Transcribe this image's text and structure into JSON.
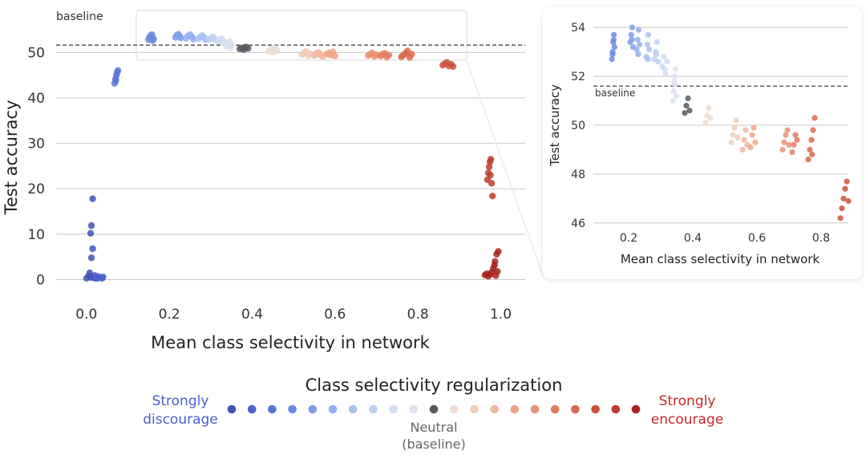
{
  "chart_data": [
    {
      "type": "scatter",
      "id": "main",
      "xlabel": "Mean class selectivity in network",
      "ylabel": "Test accuracy",
      "xlim": [
        -0.05,
        1.03
      ],
      "ylim": [
        -1.5,
        55
      ],
      "xticks": [
        0.0,
        0.2,
        0.4,
        0.6,
        0.8,
        1.0
      ],
      "xtick_labels": [
        "0.0",
        "0.2",
        "0.4",
        "0.6",
        "0.8",
        "1.0"
      ],
      "yticks": [
        0,
        10,
        20,
        30,
        40,
        50
      ],
      "ytick_labels": [
        "0",
        "10",
        "20",
        "30",
        "40",
        "50"
      ],
      "grid": "horizontal",
      "baseline": {
        "value": 51.6,
        "label": "baseline"
      },
      "clusters": [
        {
          "level": 0,
          "points": [
            [
              0.0,
              0.3
            ],
            [
              0.005,
              0.8
            ],
            [
              0.008,
              1.5
            ],
            [
              0.01,
              0.5
            ],
            [
              0.012,
              4.8
            ],
            [
              0.015,
              6.8
            ],
            [
              0.01,
              10.2
            ],
            [
              0.012,
              11.9
            ],
            [
              0.015,
              17.8
            ],
            [
              0.018,
              0.4
            ],
            [
              0.02,
              0.9
            ],
            [
              0.022,
              0.3
            ]
          ]
        },
        {
          "level": 1,
          "points": [
            [
              0.024,
              0.5
            ],
            [
              0.026,
              0.3
            ],
            [
              0.028,
              0.7
            ],
            [
              0.03,
              0.4
            ],
            [
              0.034,
              0.5
            ],
            [
              0.038,
              0.3
            ],
            [
              0.04,
              0.6
            ]
          ]
        },
        {
          "level": 2,
          "points": [
            [
              0.068,
              43.2
            ],
            [
              0.07,
              44.1
            ],
            [
              0.072,
              44.9
            ],
            [
              0.074,
              45.6
            ],
            [
              0.076,
              46.0
            ],
            [
              0.071,
              43.8
            ]
          ]
        },
        {
          "level": 3,
          "points": [
            [
              0.15,
              52.8
            ],
            [
              0.152,
              53.3
            ],
            [
              0.155,
              53.7
            ],
            [
              0.158,
              53.9
            ],
            [
              0.16,
              52.6
            ],
            [
              0.162,
              53.0
            ]
          ]
        },
        {
          "level": 4,
          "points": [
            [
              0.215,
              53.3
            ],
            [
              0.218,
              53.8
            ],
            [
              0.222,
              54.0
            ],
            [
              0.225,
              53.6
            ],
            [
              0.228,
              53.2
            ]
          ]
        },
        {
          "level": 5,
          "points": [
            [
              0.24,
              53.1
            ],
            [
              0.245,
              53.6
            ],
            [
              0.25,
              53.9
            ],
            [
              0.255,
              53.4
            ],
            [
              0.258,
              52.9
            ]
          ]
        },
        {
          "level": 6,
          "points": [
            [
              0.27,
              53.0
            ],
            [
              0.275,
              53.4
            ],
            [
              0.28,
              53.7
            ],
            [
              0.285,
              53.2
            ],
            [
              0.288,
              52.8
            ]
          ]
        },
        {
          "level": 7,
          "points": [
            [
              0.295,
              52.8
            ],
            [
              0.3,
              53.1
            ],
            [
              0.305,
              53.4
            ],
            [
              0.31,
              52.9
            ],
            [
              0.315,
              52.6
            ]
          ]
        },
        {
          "level": 8,
          "points": [
            [
              0.318,
              52.5
            ],
            [
              0.322,
              52.8
            ],
            [
              0.326,
              53.0
            ],
            [
              0.33,
              52.4
            ],
            [
              0.334,
              52.2
            ]
          ]
        },
        {
          "level": 9,
          "points": [
            [
              0.338,
              51.3
            ],
            [
              0.34,
              51.7
            ],
            [
              0.343,
              52.0
            ],
            [
              0.346,
              52.4
            ],
            [
              0.348,
              51.0
            ],
            [
              0.35,
              51.5
            ]
          ]
        },
        {
          "level": 10,
          "points": [
            [
              0.37,
              50.8
            ],
            [
              0.375,
              51.0
            ],
            [
              0.38,
              50.6
            ],
            [
              0.385,
              51.2
            ],
            [
              0.39,
              50.9
            ]
          ]
        },
        {
          "level": 11,
          "points": [
            [
              0.44,
              50.3
            ],
            [
              0.445,
              50.6
            ],
            [
              0.45,
              50.1
            ],
            [
              0.455,
              50.9
            ],
            [
              0.46,
              50.4
            ]
          ]
        },
        {
          "level": 12,
          "points": [
            [
              0.52,
              49.5
            ],
            [
              0.525,
              49.9
            ],
            [
              0.53,
              50.2
            ],
            [
              0.535,
              49.3
            ],
            [
              0.54,
              49.7
            ]
          ]
        },
        {
          "level": 13,
          "points": [
            [
              0.55,
              49.3
            ],
            [
              0.555,
              49.8
            ],
            [
              0.56,
              50.0
            ],
            [
              0.565,
              49.4
            ],
            [
              0.57,
              49.1
            ]
          ]
        },
        {
          "level": 14,
          "points": [
            [
              0.58,
              49.6
            ],
            [
              0.585,
              49.9
            ],
            [
              0.59,
              49.4
            ],
            [
              0.595,
              50.1
            ],
            [
              0.6,
              49.2
            ]
          ]
        },
        {
          "level": 15,
          "points": [
            [
              0.68,
              49.3
            ],
            [
              0.685,
              49.6
            ],
            [
              0.69,
              49.9
            ],
            [
              0.695,
              49.1
            ],
            [
              0.7,
              49.5
            ]
          ]
        },
        {
          "level": 16,
          "points": [
            [
              0.71,
              49.2
            ],
            [
              0.715,
              49.6
            ],
            [
              0.72,
              49.8
            ],
            [
              0.725,
              49.0
            ],
            [
              0.73,
              49.4
            ]
          ]
        },
        {
          "level": 17,
          "points": [
            [
              0.76,
              49.0
            ],
            [
              0.765,
              49.4
            ],
            [
              0.77,
              49.8
            ],
            [
              0.775,
              50.3
            ],
            [
              0.78,
              48.9
            ],
            [
              0.785,
              49.6
            ]
          ]
        },
        {
          "level": 18,
          "points": [
            [
              0.86,
              47.2
            ],
            [
              0.865,
              47.5
            ],
            [
              0.87,
              47.8
            ],
            [
              0.875,
              47.0
            ],
            [
              0.88,
              47.4
            ],
            [
              0.885,
              46.9
            ]
          ]
        },
        {
          "level": 19,
          "points": [
            [
              0.968,
              22.0
            ],
            [
              0.97,
              23.5
            ],
            [
              0.972,
              24.8
            ],
            [
              0.974,
              25.9
            ],
            [
              0.976,
              26.5
            ],
            [
              0.978,
              21.2
            ],
            [
              0.98,
              18.4
            ],
            [
              0.975,
              23.0
            ]
          ]
        },
        {
          "level": 20,
          "points": [
            [
              0.962,
              1.0
            ],
            [
              0.966,
              1.3
            ],
            [
              0.97,
              0.8
            ],
            [
              0.974,
              1.1
            ],
            [
              0.978,
              1.6
            ],
            [
              0.982,
              2.5
            ],
            [
              0.986,
              4.0
            ],
            [
              0.99,
              5.6
            ],
            [
              0.994,
              6.2
            ],
            [
              0.985,
              3.2
            ],
            [
              0.992,
              1.8
            ],
            [
              0.988,
              0.9
            ]
          ]
        }
      ]
    },
    {
      "type": "scatter",
      "id": "inset",
      "xlabel": "Mean class selectivity in network",
      "ylabel": "Test accuracy",
      "xlim": [
        0.1,
        0.9
      ],
      "ylim": [
        45.8,
        54.4
      ],
      "xticks": [
        0.2,
        0.4,
        0.6,
        0.8
      ],
      "xtick_labels": [
        "0.2",
        "0.4",
        "0.6",
        "0.8"
      ],
      "yticks": [
        46,
        48,
        50,
        52,
        54
      ],
      "ytick_labels": [
        "46",
        "48",
        "50",
        "52",
        "54"
      ],
      "grid": "horizontal",
      "baseline": {
        "value": 51.6,
        "label": "baseline"
      },
      "clusters": [
        {
          "level": 3,
          "points": [
            [
              0.148,
              52.7
            ],
            [
              0.15,
              53.0
            ],
            [
              0.152,
              53.4
            ],
            [
              0.154,
              53.7
            ],
            [
              0.156,
              53.2
            ],
            [
              0.15,
              52.9
            ],
            [
              0.153,
              53.5
            ]
          ]
        },
        {
          "level": 4,
          "points": [
            [
              0.205,
              53.4
            ],
            [
              0.208,
              53.7
            ],
            [
              0.211,
              54.0
            ],
            [
              0.214,
              53.2
            ],
            [
              0.21,
              53.5
            ]
          ]
        },
        {
          "level": 5,
          "points": [
            [
              0.225,
              53.1
            ],
            [
              0.228,
              53.5
            ],
            [
              0.231,
              53.9
            ],
            [
              0.234,
              53.3
            ],
            [
              0.23,
              52.9
            ]
          ]
        },
        {
          "level": 6,
          "points": [
            [
              0.255,
              52.8
            ],
            [
              0.258,
              53.3
            ],
            [
              0.261,
              53.7
            ],
            [
              0.264,
              53.1
            ],
            [
              0.26,
              52.7
            ]
          ]
        },
        {
          "level": 7,
          "points": [
            [
              0.28,
              52.7
            ],
            [
              0.284,
              53.0
            ],
            [
              0.288,
              53.4
            ],
            [
              0.292,
              52.6
            ],
            [
              0.286,
              52.9
            ]
          ]
        },
        {
          "level": 8,
          "points": [
            [
              0.305,
              52.4
            ],
            [
              0.31,
              52.8
            ],
            [
              0.315,
              52.1
            ],
            [
              0.32,
              52.6
            ],
            [
              0.312,
              52.3
            ]
          ]
        },
        {
          "level": 9,
          "points": [
            [
              0.338,
              51.0
            ],
            [
              0.34,
              51.4
            ],
            [
              0.342,
              51.7
            ],
            [
              0.344,
              52.0
            ],
            [
              0.346,
              52.3
            ],
            [
              0.348,
              51.2
            ],
            [
              0.343,
              51.8
            ]
          ]
        },
        {
          "level": 10,
          "points": [
            [
              0.375,
              50.5
            ],
            [
              0.38,
              50.8
            ],
            [
              0.385,
              51.1
            ],
            [
              0.39,
              50.6
            ]
          ]
        },
        {
          "level": 11,
          "points": [
            [
              0.44,
              50.1
            ],
            [
              0.445,
              50.4
            ],
            [
              0.45,
              50.7
            ],
            [
              0.455,
              50.3
            ]
          ]
        },
        {
          "level": 12,
          "points": [
            [
              0.52,
              49.3
            ],
            [
              0.525,
              49.6
            ],
            [
              0.53,
              49.9
            ],
            [
              0.535,
              50.2
            ],
            [
              0.54,
              49.5
            ]
          ]
        },
        {
          "level": 13,
          "points": [
            [
              0.555,
              49.0
            ],
            [
              0.56,
              49.4
            ],
            [
              0.565,
              49.8
            ],
            [
              0.57,
              49.2
            ]
          ]
        },
        {
          "level": 14,
          "points": [
            [
              0.58,
              49.1
            ],
            [
              0.585,
              49.6
            ],
            [
              0.59,
              49.9
            ],
            [
              0.595,
              49.3
            ]
          ]
        },
        {
          "level": 15,
          "points": [
            [
              0.68,
              49.0
            ],
            [
              0.685,
              49.3
            ],
            [
              0.69,
              49.6
            ],
            [
              0.695,
              49.8
            ],
            [
              0.7,
              49.2
            ]
          ]
        },
        {
          "level": 16,
          "points": [
            [
              0.71,
              48.9
            ],
            [
              0.715,
              49.2
            ],
            [
              0.72,
              49.6
            ],
            [
              0.725,
              49.4
            ]
          ]
        },
        {
          "level": 17,
          "points": [
            [
              0.76,
              48.6
            ],
            [
              0.765,
              49.0
            ],
            [
              0.77,
              49.4
            ],
            [
              0.775,
              49.8
            ],
            [
              0.78,
              50.3
            ],
            [
              0.772,
              48.8
            ]
          ]
        },
        {
          "level": 18,
          "points": [
            [
              0.86,
              46.2
            ],
            [
              0.865,
              46.6
            ],
            [
              0.87,
              47.0
            ],
            [
              0.875,
              47.4
            ],
            [
              0.88,
              47.7
            ],
            [
              0.885,
              46.9
            ]
          ]
        }
      ]
    }
  ],
  "legend": {
    "title": "Class selectivity regularization",
    "left_label_line1": "Strongly",
    "left_label_line2": "discourage",
    "right_label_line1": "Strongly",
    "right_label_line2": "encourage",
    "center_label_line1": "Neutral",
    "center_label_line2": "(baseline)",
    "levels": 21,
    "neutral_index": 10
  },
  "colors": {
    "palette": [
      "#3f54b6",
      "#4a63c8",
      "#5877d6",
      "#6b8ae0",
      "#7f9de8",
      "#94afee",
      "#a9c1f1",
      "#bdd0f2",
      "#cfdcf1",
      "#dbe2ec",
      "#555a60",
      "#ecdcd1",
      "#f0ccb8",
      "#f1b9a0",
      "#efa68a",
      "#ea9274",
      "#e37d60",
      "#d9684c",
      "#cd523b",
      "#bd3b2b",
      "#a8241f"
    ],
    "neutral": "#555a60",
    "grid": "#c8c8c8",
    "baseline": "#555555",
    "left_label": "#4a5fc9",
    "right_label": "#c42a2a",
    "neutral_label": "#666666"
  }
}
